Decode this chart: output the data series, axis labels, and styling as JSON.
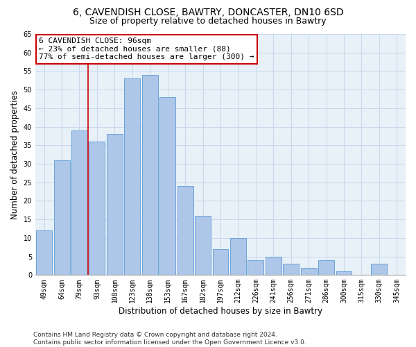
{
  "title_line1": "6, CAVENDISH CLOSE, BAWTRY, DONCASTER, DN10 6SD",
  "title_line2": "Size of property relative to detached houses in Bawtry",
  "xlabel": "Distribution of detached houses by size in Bawtry",
  "ylabel": "Number of detached properties",
  "categories": [
    "49sqm",
    "64sqm",
    "79sqm",
    "93sqm",
    "108sqm",
    "123sqm",
    "138sqm",
    "153sqm",
    "167sqm",
    "182sqm",
    "197sqm",
    "212sqm",
    "226sqm",
    "241sqm",
    "256sqm",
    "271sqm",
    "286sqm",
    "300sqm",
    "315sqm",
    "330sqm",
    "345sqm"
  ],
  "values": [
    12,
    31,
    39,
    36,
    38,
    53,
    54,
    48,
    24,
    16,
    7,
    10,
    4,
    5,
    3,
    2,
    4,
    1,
    0,
    3,
    0
  ],
  "bar_color": "#aec6e8",
  "bar_edge_color": "#5b9bd5",
  "grid_color": "#c8d8ea",
  "bg_color": "#e8f0f8",
  "annotation_line1": "6 CAVENDISH CLOSE: 96sqm",
  "annotation_line2": "← 23% of detached houses are smaller (88)",
  "annotation_line3": "77% of semi-detached houses are larger (300) →",
  "annotation_box_color": "#ffffff",
  "annotation_box_edge": "#cc0000",
  "vline_color": "#cc0000",
  "vline_x_idx": 2.5,
  "ylim": [
    0,
    65
  ],
  "yticks": [
    0,
    5,
    10,
    15,
    20,
    25,
    30,
    35,
    40,
    45,
    50,
    55,
    60,
    65
  ],
  "footnote_line1": "Contains HM Land Registry data © Crown copyright and database right 2024.",
  "footnote_line2": "Contains public sector information licensed under the Open Government Licence v3.0.",
  "title_fontsize": 10,
  "subtitle_fontsize": 9,
  "tick_fontsize": 7,
  "ylabel_fontsize": 8.5,
  "xlabel_fontsize": 8.5,
  "annotation_fontsize": 8,
  "footnote_fontsize": 6.5
}
